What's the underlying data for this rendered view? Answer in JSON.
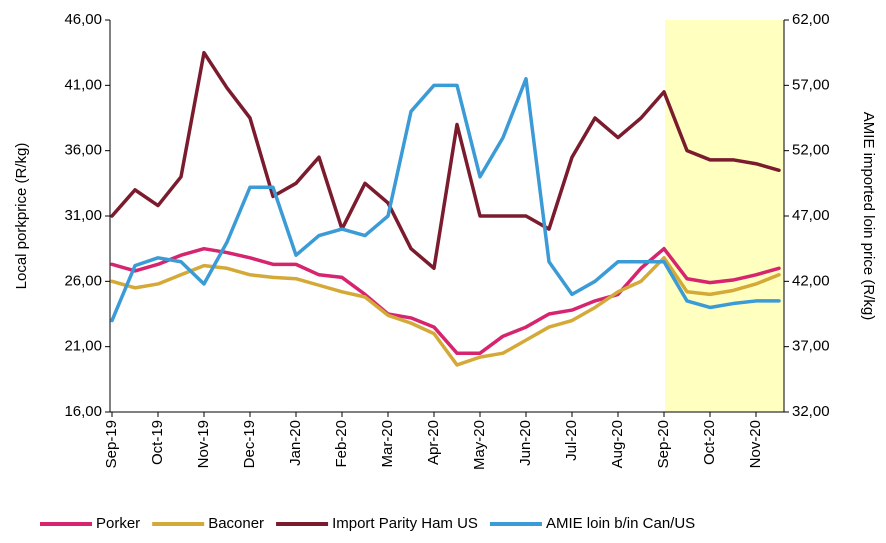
{
  "chart_data": {
    "type": "line",
    "y_label": "Local porkprice (R/kg)",
    "y2_label": "AMIE imported loin price (R/kg)",
    "categories": [
      "Sep-19",
      null,
      "Oct-19",
      null,
      "Nov-19",
      null,
      "Dec-19",
      null,
      "Jan-20",
      null,
      "Feb-20",
      null,
      "Mar-20",
      null,
      "Apr-20",
      null,
      "May-20",
      null,
      "Jun-20",
      null,
      "Jul-20",
      null,
      "Aug-20",
      null,
      "Sep-20",
      null,
      "Oct-20",
      null,
      "Nov-20",
      null
    ],
    "ylim": [
      16,
      46
    ],
    "yticks": [
      {
        "value": 16,
        "label": "16,00"
      },
      {
        "value": 21,
        "label": "21,00"
      },
      {
        "value": 26,
        "label": "26,00"
      },
      {
        "value": 31,
        "label": "31,00"
      },
      {
        "value": 36,
        "label": "36,00"
      },
      {
        "value": 41,
        "label": "41,00"
      },
      {
        "value": 46,
        "label": "46,00"
      }
    ],
    "y2lim": [
      32,
      62
    ],
    "y2ticks": [
      {
        "value": 32,
        "label": "32,00"
      },
      {
        "value": 37,
        "label": "37,00"
      },
      {
        "value": 42,
        "label": "42,00"
      },
      {
        "value": 47,
        "label": "47,00"
      },
      {
        "value": 52,
        "label": "52,00"
      },
      {
        "value": 57,
        "label": "57,00"
      },
      {
        "value": 62,
        "label": "62,00"
      }
    ],
    "legend": "bottom",
    "series": [
      {
        "name": "Porker",
        "color": "#d6246e",
        "values": [
          27.3,
          26.8,
          27.3,
          28.0,
          28.5,
          28.2,
          27.8,
          27.3,
          27.3,
          26.5,
          26.3,
          25.0,
          23.5,
          23.2,
          22.5,
          20.5,
          20.5,
          21.8,
          22.5,
          23.5,
          23.8,
          24.5,
          25.0,
          27.0,
          28.5,
          26.2,
          25.9,
          26.1,
          26.5,
          27.0
        ]
      },
      {
        "name": "Baconer",
        "color": "#d4a937",
        "values": [
          26.0,
          25.5,
          25.8,
          26.5,
          27.2,
          27.0,
          26.5,
          26.3,
          26.2,
          25.7,
          25.2,
          24.8,
          23.4,
          22.8,
          22.0,
          19.6,
          20.2,
          20.5,
          21.5,
          22.5,
          23.0,
          24.0,
          25.2,
          26.0,
          27.8,
          25.2,
          25.0,
          25.3,
          25.8,
          26.5
        ]
      },
      {
        "name": "Import Parity Ham US",
        "color": "#7b1c2e",
        "values": [
          31.0,
          33.0,
          31.8,
          34.0,
          43.5,
          40.8,
          38.5,
          32.5,
          33.5,
          35.5,
          30.0,
          33.5,
          32.0,
          28.5,
          27.0,
          38.0,
          31.0,
          31.0,
          31.0,
          30.0,
          35.5,
          38.5,
          37.0,
          38.5,
          40.5,
          36.0,
          35.3,
          35.3,
          35.0,
          34.5
        ]
      },
      {
        "name": "AMIE loin b/in Can/US",
        "color": "#3b9bd6",
        "axis": "y2",
        "values": [
          39.0,
          43.2,
          43.8,
          43.5,
          41.8,
          45.0,
          49.2,
          49.2,
          44.0,
          45.5,
          46.0,
          45.5,
          47.0,
          55.0,
          57.0,
          57.0,
          50.0,
          53.0,
          57.5,
          43.5,
          41.0,
          42.0,
          43.5,
          43.5,
          43.5,
          40.5,
          40.0,
          40.3,
          40.5,
          40.5
        ]
      }
    ]
  }
}
